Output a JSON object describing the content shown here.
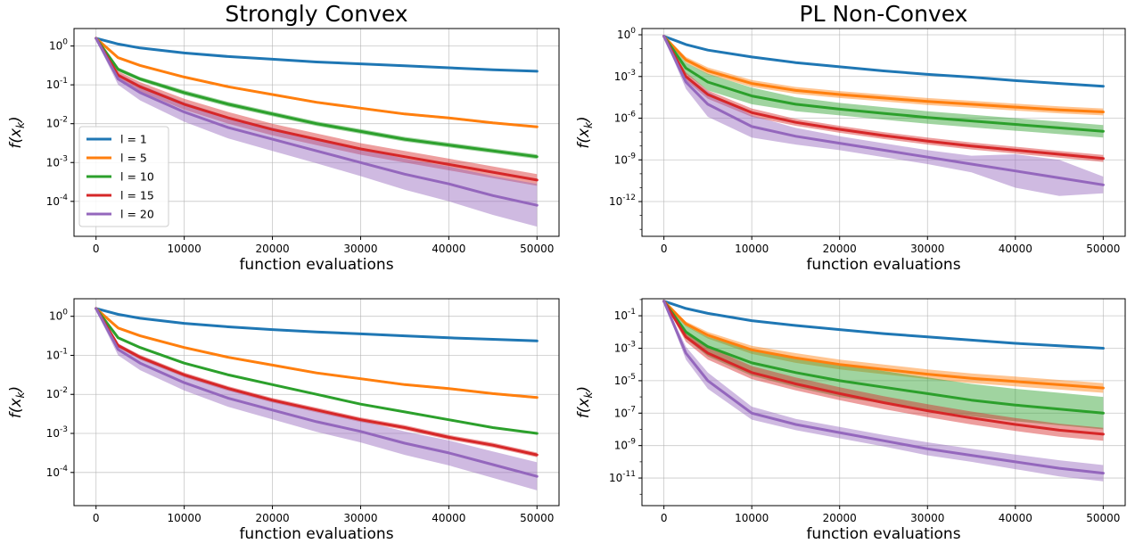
{
  "chart_data": [
    {
      "type": "line",
      "title": "Strongly Convex",
      "xlabel": "function evaluations",
      "ylabel": "f(x",
      "ylabel_sub": "k",
      "ylabel_close": ")",
      "xlim": [
        -2500,
        52500
      ],
      "ylim_log10": [
        -4.9,
        0.45
      ],
      "xticks": [
        0,
        10000,
        20000,
        30000,
        40000,
        50000
      ],
      "yticks_log10": [
        0,
        -1,
        -2,
        -3,
        -4
      ],
      "ytick_labels": [
        "10^0",
        "10^-1",
        "10^-2",
        "10^-3",
        "10^-4"
      ],
      "grid": true,
      "legend": "lower-left",
      "series": [
        {
          "name": "l = 1",
          "color": "#1f77b4",
          "x": [
            0,
            2500,
            5000,
            10000,
            15000,
            20000,
            25000,
            30000,
            35000,
            40000,
            45000,
            50000
          ],
          "log10y": [
            0.2,
            0.05,
            -0.05,
            -0.18,
            -0.27,
            -0.34,
            -0.41,
            -0.46,
            -0.51,
            -0.56,
            -0.61,
            -0.65
          ],
          "band": [
            0.01,
            0.01,
            0.01,
            0.01,
            0.01,
            0.01,
            0.01,
            0.01,
            0.01,
            0.01,
            0.01,
            0.01
          ]
        },
        {
          "name": "l = 5",
          "color": "#ff7f0e",
          "x": [
            0,
            2500,
            5000,
            10000,
            15000,
            20000,
            25000,
            30000,
            35000,
            40000,
            45000,
            50000
          ],
          "log10y": [
            0.2,
            -0.3,
            -0.5,
            -0.8,
            -1.05,
            -1.25,
            -1.45,
            -1.6,
            -1.75,
            -1.85,
            -1.98,
            -2.08
          ],
          "band": [
            0.02,
            0.03,
            0.03,
            0.03,
            0.03,
            0.03,
            0.03,
            0.03,
            0.03,
            0.03,
            0.03,
            0.03
          ]
        },
        {
          "name": "l = 10",
          "color": "#2ca02c",
          "x": [
            0,
            2500,
            5000,
            10000,
            15000,
            20000,
            25000,
            30000,
            35000,
            40000,
            45000,
            50000
          ],
          "log10y": [
            0.2,
            -0.6,
            -0.85,
            -1.2,
            -1.5,
            -1.75,
            -2.0,
            -2.2,
            -2.4,
            -2.55,
            -2.7,
            -2.85
          ],
          "band": [
            0.03,
            0.05,
            0.05,
            0.06,
            0.06,
            0.06,
            0.06,
            0.06,
            0.06,
            0.06,
            0.06,
            0.06
          ]
        },
        {
          "name": "l = 15",
          "color": "#d62728",
          "x": [
            0,
            2500,
            5000,
            10000,
            15000,
            20000,
            25000,
            30000,
            35000,
            40000,
            45000,
            50000
          ],
          "log10y": [
            0.2,
            -0.75,
            -1.05,
            -1.5,
            -1.85,
            -2.15,
            -2.4,
            -2.65,
            -2.85,
            -3.05,
            -3.25,
            -3.45
          ],
          "band": [
            0.05,
            0.1,
            0.12,
            0.14,
            0.15,
            0.15,
            0.15,
            0.15,
            0.15,
            0.15,
            0.15,
            0.15
          ]
        },
        {
          "name": "l = 20",
          "color": "#9467bd",
          "x": [
            0,
            2500,
            5000,
            10000,
            15000,
            20000,
            25000,
            30000,
            35000,
            40000,
            45000,
            50000
          ],
          "log10y": [
            0.2,
            -0.85,
            -1.2,
            -1.7,
            -2.1,
            -2.4,
            -2.7,
            -3.0,
            -3.3,
            -3.55,
            -3.85,
            -4.1
          ],
          "band": [
            0.05,
            0.15,
            0.2,
            0.25,
            0.28,
            0.3,
            0.32,
            0.35,
            0.4,
            0.45,
            0.5,
            0.55
          ]
        }
      ]
    },
    {
      "type": "line",
      "title": "PL Non-Convex",
      "xlabel": "function evaluations",
      "ylabel": "f(x",
      "ylabel_sub": "k",
      "ylabel_close": ")",
      "xlim": [
        -2500,
        52500
      ],
      "ylim_log10": [
        -14.5,
        0.45
      ],
      "xticks": [
        0,
        10000,
        20000,
        30000,
        40000,
        50000
      ],
      "yticks_log10": [
        0,
        -3,
        -6,
        -9,
        -12
      ],
      "ytick_labels": [
        "10^0",
        "10^-3",
        "10^-6",
        "10^-9",
        "10^-12"
      ],
      "grid": true,
      "series": [
        {
          "name": "l = 1",
          "color": "#1f77b4",
          "x": [
            0,
            2500,
            5000,
            10000,
            15000,
            20000,
            25000,
            30000,
            35000,
            40000,
            45000,
            50000
          ],
          "log10y": [
            -0.1,
            -0.7,
            -1.1,
            -1.6,
            -2.0,
            -2.3,
            -2.6,
            -2.85,
            -3.05,
            -3.3,
            -3.5,
            -3.7
          ],
          "band": [
            0.02,
            0.02,
            0.02,
            0.02,
            0.02,
            0.02,
            0.02,
            0.02,
            0.02,
            0.02,
            0.02,
            0.02
          ]
        },
        {
          "name": "l = 5",
          "color": "#ff7f0e",
          "x": [
            0,
            2500,
            5000,
            10000,
            15000,
            20000,
            25000,
            30000,
            35000,
            40000,
            45000,
            50000
          ],
          "log10y": [
            -0.1,
            -1.8,
            -2.6,
            -3.5,
            -4.0,
            -4.3,
            -4.55,
            -4.8,
            -5.0,
            -5.2,
            -5.4,
            -5.55
          ],
          "band": [
            0.05,
            0.2,
            0.25,
            0.25,
            0.25,
            0.25,
            0.25,
            0.25,
            0.25,
            0.25,
            0.25,
            0.25
          ]
        },
        {
          "name": "l = 10",
          "color": "#2ca02c",
          "x": [
            0,
            2500,
            5000,
            10000,
            15000,
            20000,
            25000,
            30000,
            35000,
            40000,
            45000,
            50000
          ],
          "log10y": [
            -0.1,
            -2.4,
            -3.4,
            -4.4,
            -5.0,
            -5.35,
            -5.65,
            -5.95,
            -6.2,
            -6.45,
            -6.7,
            -6.95
          ],
          "band": [
            0.05,
            0.4,
            0.6,
            0.6,
            0.5,
            0.45,
            0.45,
            0.45,
            0.45,
            0.45,
            0.45,
            0.45
          ]
        },
        {
          "name": "l = 15",
          "color": "#d62728",
          "x": [
            0,
            2500,
            5000,
            10000,
            15000,
            20000,
            25000,
            30000,
            35000,
            40000,
            45000,
            50000
          ],
          "log10y": [
            -0.1,
            -3.0,
            -4.3,
            -5.6,
            -6.3,
            -6.8,
            -7.25,
            -7.65,
            -8.0,
            -8.3,
            -8.6,
            -8.9
          ],
          "band": [
            0.05,
            0.3,
            0.3,
            0.3,
            0.25,
            0.25,
            0.25,
            0.25,
            0.25,
            0.25,
            0.25,
            0.25
          ]
        },
        {
          "name": "l = 20",
          "color": "#9467bd",
          "x": [
            0,
            2500,
            5000,
            10000,
            15000,
            20000,
            25000,
            30000,
            35000,
            40000,
            45000,
            50000
          ],
          "log10y": [
            -0.1,
            -3.4,
            -5.0,
            -6.6,
            -7.3,
            -7.8,
            -8.3,
            -8.8,
            -9.3,
            -9.8,
            -10.3,
            -10.8
          ],
          "band": [
            0.05,
            0.5,
            0.9,
            0.8,
            0.6,
            0.5,
            0.5,
            0.5,
            0.6,
            1.2,
            1.3,
            0.6
          ]
        }
      ]
    },
    {
      "type": "line",
      "xlabel": "function evaluations",
      "ylabel": "f(x",
      "ylabel_sub": "k",
      "ylabel_close": ")",
      "xlim": [
        -2500,
        52500
      ],
      "ylim_log10": [
        -4.85,
        0.45
      ],
      "xticks": [
        0,
        10000,
        20000,
        30000,
        40000,
        50000
      ],
      "yticks_log10": [
        0,
        -1,
        -2,
        -3,
        -4
      ],
      "ytick_labels": [
        "10^0",
        "10^-1",
        "10^-2",
        "10^-3",
        "10^-4"
      ],
      "grid": true,
      "series": [
        {
          "name": "l = 1",
          "color": "#1f77b4",
          "x": [
            0,
            2500,
            5000,
            10000,
            15000,
            20000,
            25000,
            30000,
            35000,
            40000,
            45000,
            50000
          ],
          "log10y": [
            0.2,
            0.05,
            -0.05,
            -0.18,
            -0.27,
            -0.34,
            -0.4,
            -0.45,
            -0.5,
            -0.55,
            -0.59,
            -0.63
          ],
          "band": [
            0.01,
            0.01,
            0.01,
            0.01,
            0.01,
            0.01,
            0.01,
            0.01,
            0.01,
            0.01,
            0.01,
            0.01
          ]
        },
        {
          "name": "l = 5",
          "color": "#ff7f0e",
          "x": [
            0,
            2500,
            5000,
            10000,
            15000,
            20000,
            25000,
            30000,
            35000,
            40000,
            45000,
            50000
          ],
          "log10y": [
            0.2,
            -0.3,
            -0.5,
            -0.8,
            -1.05,
            -1.25,
            -1.45,
            -1.6,
            -1.75,
            -1.85,
            -1.98,
            -2.08
          ],
          "band": [
            0.02,
            0.03,
            0.03,
            0.03,
            0.03,
            0.03,
            0.03,
            0.03,
            0.03,
            0.03,
            0.03,
            0.03
          ]
        },
        {
          "name": "l = 10",
          "color": "#2ca02c",
          "x": [
            0,
            2500,
            5000,
            10000,
            15000,
            20000,
            25000,
            30000,
            35000,
            40000,
            45000,
            50000
          ],
          "log10y": [
            0.2,
            -0.55,
            -0.8,
            -1.2,
            -1.5,
            -1.75,
            -2.0,
            -2.25,
            -2.45,
            -2.65,
            -2.85,
            -3.0
          ],
          "band": [
            0.02,
            0.02,
            0.02,
            0.02,
            0.02,
            0.02,
            0.02,
            0.02,
            0.02,
            0.02,
            0.02,
            0.02
          ]
        },
        {
          "name": "l = 15",
          "color": "#d62728",
          "x": [
            0,
            2500,
            5000,
            10000,
            15000,
            20000,
            25000,
            30000,
            35000,
            40000,
            45000,
            50000
          ],
          "log10y": [
            0.2,
            -0.75,
            -1.05,
            -1.5,
            -1.85,
            -2.15,
            -2.4,
            -2.65,
            -2.85,
            -3.1,
            -3.3,
            -3.55
          ],
          "band": [
            0.03,
            0.05,
            0.06,
            0.06,
            0.06,
            0.06,
            0.06,
            0.06,
            0.06,
            0.06,
            0.06,
            0.06
          ]
        },
        {
          "name": "l = 20",
          "color": "#9467bd",
          "x": [
            0,
            2500,
            5000,
            10000,
            15000,
            20000,
            25000,
            30000,
            35000,
            40000,
            45000,
            50000
          ],
          "log10y": [
            0.2,
            -0.85,
            -1.2,
            -1.7,
            -2.1,
            -2.4,
            -2.7,
            -2.95,
            -3.25,
            -3.5,
            -3.8,
            -4.1
          ],
          "band": [
            0.05,
            0.15,
            0.18,
            0.2,
            0.22,
            0.24,
            0.26,
            0.28,
            0.3,
            0.32,
            0.34,
            0.36
          ]
        }
      ]
    },
    {
      "type": "line",
      "xlabel": "function evaluations",
      "ylabel": "f(x",
      "ylabel_sub": "k",
      "ylabel_close": ")",
      "xlim": [
        -2500,
        52500
      ],
      "ylim_log10": [
        -12.7,
        0.05
      ],
      "xticks": [
        0,
        10000,
        20000,
        30000,
        40000,
        50000
      ],
      "yticks_log10": [
        -1,
        -3,
        -5,
        -7,
        -9,
        -11
      ],
      "ytick_labels": [
        "10^-1",
        "10^-3",
        "10^-5",
        "10^-7",
        "10^-9",
        "10^-11"
      ],
      "grid": true,
      "series": [
        {
          "name": "l = 1",
          "color": "#1f77b4",
          "x": [
            0,
            2500,
            5000,
            10000,
            15000,
            20000,
            25000,
            30000,
            35000,
            40000,
            45000,
            50000
          ],
          "log10y": [
            -0.1,
            -0.55,
            -0.85,
            -1.3,
            -1.6,
            -1.85,
            -2.1,
            -2.3,
            -2.5,
            -2.7,
            -2.85,
            -3.0
          ],
          "band": [
            0.02,
            0.02,
            0.02,
            0.02,
            0.02,
            0.02,
            0.02,
            0.02,
            0.02,
            0.02,
            0.02,
            0.02
          ]
        },
        {
          "name": "l = 5",
          "color": "#ff7f0e",
          "x": [
            0,
            2500,
            5000,
            10000,
            15000,
            20000,
            25000,
            30000,
            35000,
            40000,
            45000,
            50000
          ],
          "log10y": [
            -0.1,
            -1.5,
            -2.2,
            -3.1,
            -3.6,
            -4.0,
            -4.3,
            -4.6,
            -4.85,
            -5.05,
            -5.25,
            -5.45
          ],
          "band": [
            0.05,
            0.15,
            0.2,
            0.25,
            0.3,
            0.3,
            0.3,
            0.3,
            0.3,
            0.3,
            0.3,
            0.3
          ]
        },
        {
          "name": "l = 10",
          "color": "#2ca02c",
          "x": [
            0,
            2500,
            5000,
            10000,
            15000,
            20000,
            25000,
            30000,
            35000,
            40000,
            45000,
            50000
          ],
          "log10y": [
            -0.1,
            -2.0,
            -2.9,
            -3.9,
            -4.5,
            -5.0,
            -5.4,
            -5.8,
            -6.2,
            -6.5,
            -6.75,
            -7.0
          ],
          "band": [
            0.05,
            0.4,
            0.6,
            0.8,
            0.9,
            1.0,
            1.0,
            1.0,
            1.0,
            1.0,
            1.0,
            1.0
          ]
        },
        {
          "name": "l = 15",
          "color": "#d62728",
          "x": [
            0,
            2500,
            5000,
            10000,
            15000,
            20000,
            25000,
            30000,
            35000,
            40000,
            45000,
            50000
          ],
          "log10y": [
            -0.1,
            -2.3,
            -3.3,
            -4.5,
            -5.2,
            -5.8,
            -6.35,
            -6.85,
            -7.3,
            -7.7,
            -8.05,
            -8.3
          ],
          "band": [
            0.05,
            0.3,
            0.4,
            0.4,
            0.4,
            0.4,
            0.4,
            0.4,
            0.4,
            0.4,
            0.4,
            0.4
          ]
        },
        {
          "name": "l = 20",
          "color": "#9467bd",
          "x": [
            0,
            2500,
            5000,
            10000,
            15000,
            20000,
            25000,
            30000,
            35000,
            40000,
            45000,
            50000
          ],
          "log10y": [
            -0.1,
            -3.3,
            -5.0,
            -7.0,
            -7.7,
            -8.2,
            -8.7,
            -9.2,
            -9.6,
            -10.0,
            -10.4,
            -10.7
          ],
          "band": [
            0.05,
            0.4,
            0.5,
            0.4,
            0.35,
            0.35,
            0.35,
            0.4,
            0.4,
            0.45,
            0.5,
            0.5
          ]
        }
      ]
    }
  ]
}
